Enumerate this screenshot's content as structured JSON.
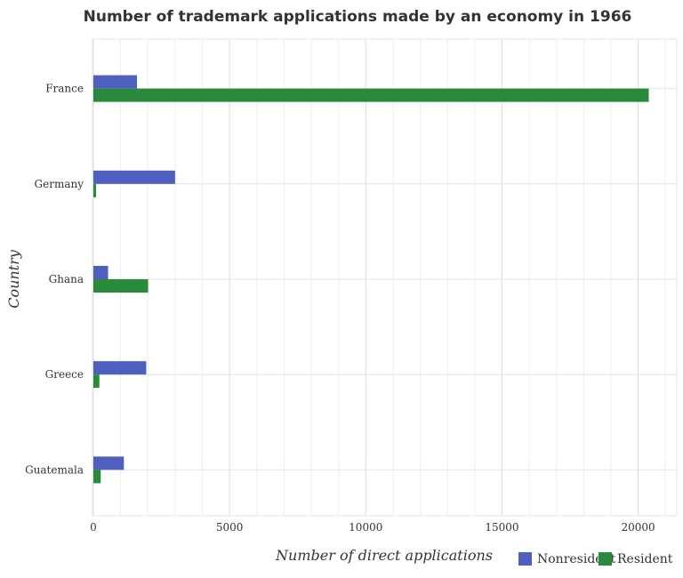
{
  "chart_data": {
    "type": "bar",
    "orientation": "horizontal",
    "title": "Number of trademark applications made by an economy in 1966",
    "xlabel": "Number of direct applications",
    "ylabel": "Country",
    "categories": [
      "France",
      "Germany",
      "Ghana",
      "Greece",
      "Guatemala"
    ],
    "series": [
      {
        "name": "Nonresident",
        "color": "#4f5fbf",
        "values": [
          1600,
          3000,
          540,
          1940,
          1120
        ]
      },
      {
        "name": "Resident",
        "color": "#2a8a3c",
        "values": [
          20390,
          100,
          2010,
          220,
          270
        ]
      }
    ],
    "xlim": [
      0,
      21000
    ],
    "xticks": [
      0,
      5000,
      10000,
      15000,
      20000
    ],
    "xtick_labels": [
      "0",
      "5000",
      "10000",
      "15000",
      "20000"
    ],
    "grid": true,
    "legend_position": "bottom-right"
  }
}
